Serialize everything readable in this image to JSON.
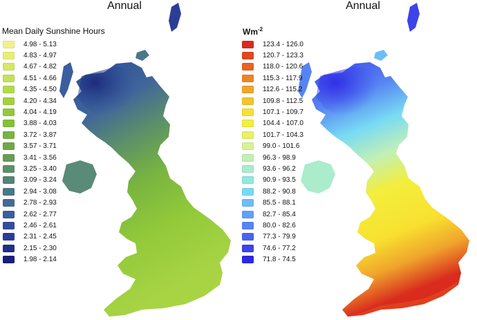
{
  "left_panel": {
    "title": "Annual",
    "legend_title": "Mean Daily Sunshine Hours",
    "legend": [
      {
        "label": "4.98 - 5.13",
        "color": "#f2f288"
      },
      {
        "label": "4.83 - 4.97",
        "color": "#e6ee74"
      },
      {
        "label": "4.67 - 4.82",
        "color": "#d6e864"
      },
      {
        "label": "4.51 - 4.66",
        "color": "#c5e256"
      },
      {
        "label": "4.35 - 4.50",
        "color": "#b3da4a"
      },
      {
        "label": "4.20 - 4.34",
        "color": "#a2d23f"
      },
      {
        "label": "4.04 - 4.19",
        "color": "#92c93a"
      },
      {
        "label": "3.88 - 4.03",
        "color": "#84c03a"
      },
      {
        "label": "3.72 - 3.87",
        "color": "#78b440"
      },
      {
        "label": "3.57 - 3.71",
        "color": "#6ea84a"
      },
      {
        "label": "3.41 - 3.56",
        "color": "#659c58"
      },
      {
        "label": "3.25 - 3.40",
        "color": "#5c9068"
      },
      {
        "label": "3.09 - 3.24",
        "color": "#528478"
      },
      {
        "label": "2.94 - 3.08",
        "color": "#4a7888"
      },
      {
        "label": "2.78 - 2.93",
        "color": "#426c96"
      },
      {
        "label": "2.62 - 2.77",
        "color": "#3a5e9e"
      },
      {
        "label": "2.46 - 2.61",
        "color": "#324ea0"
      },
      {
        "label": "2.31 - 2.45",
        "color": "#2a3e98"
      },
      {
        "label": "2.15 - 2.30",
        "color": "#222e8c"
      },
      {
        "label": "1.98 - 2.14",
        "color": "#1a1e7c"
      }
    ]
  },
  "right_panel": {
    "title": "Annual",
    "legend_title": "Wm",
    "legend_title_sup": "-2",
    "legend": [
      {
        "label": "123.4 - 126.0",
        "color": "#d92b1e"
      },
      {
        "label": "120.7 - 123.3",
        "color": "#e0481e"
      },
      {
        "label": "118.0 - 120.6",
        "color": "#e66424"
      },
      {
        "label": "115.3 - 117.9",
        "color": "#ec8428"
      },
      {
        "label": "112.6 - 115.2",
        "color": "#f0a42c"
      },
      {
        "label": "109.8 - 112.5",
        "color": "#f2c42e"
      },
      {
        "label": "107.1 - 109.7",
        "color": "#f8e030"
      },
      {
        "label": "104.4 - 107.0",
        "color": "#f4ee3c"
      },
      {
        "label": "101.7 - 104.3",
        "color": "#e8f264"
      },
      {
        "label": "99.0 - 101.6",
        "color": "#d8f294"
      },
      {
        "label": "96.3 - 98.9",
        "color": "#c2f0b4"
      },
      {
        "label": "93.6 - 96.2",
        "color": "#aaeccc"
      },
      {
        "label": "90.9 - 93.5",
        "color": "#90e8e0"
      },
      {
        "label": "88.2 - 90.8",
        "color": "#78daf4"
      },
      {
        "label": "85.5 - 88.1",
        "color": "#6cbef8"
      },
      {
        "label": "82.7 - 85.4",
        "color": "#62a0f6"
      },
      {
        "label": "80.0 - 82.6",
        "color": "#5684f2"
      },
      {
        "label": "77.3 - 79.9",
        "color": "#4a64ee"
      },
      {
        "label": "74.6 - 77.2",
        "color": "#3c44ea"
      },
      {
        "label": "71.8 - 74.5",
        "color": "#2e28e6"
      }
    ]
  }
}
